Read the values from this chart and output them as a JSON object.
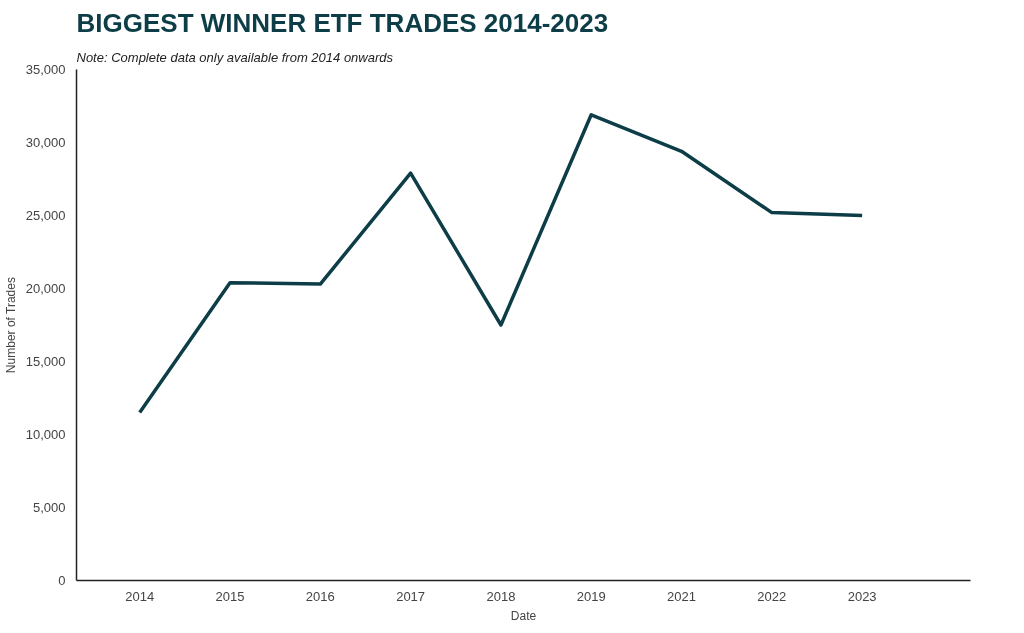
{
  "chart_data": {
    "type": "line",
    "title": "BIGGEST WINNER ETF TRADES 2014-2023",
    "subtitle": "Note: Complete data only available from 2014 onwards",
    "xlabel": "Date",
    "ylabel": "Number of Trades",
    "categories": [
      "2014",
      "2015",
      "2016",
      "2017",
      "2018",
      "2019",
      "2021",
      "2022",
      "2023"
    ],
    "series": [
      {
        "color": "#0d3d47",
        "values": [
          11500,
          20400,
          20300,
          27900,
          17500,
          31900,
          29400,
          25200,
          25000
        ]
      }
    ],
    "ylim": [
      0,
      35000
    ],
    "yticks": [
      {
        "value": 0,
        "label": "0"
      },
      {
        "value": 5000,
        "label": "5,000"
      },
      {
        "value": 10000,
        "label": "10,000"
      },
      {
        "value": 15000,
        "label": "15,000"
      },
      {
        "value": 20000,
        "label": "20,000"
      },
      {
        "value": 25000,
        "label": "25,000"
      },
      {
        "value": 30000,
        "label": "30,000"
      },
      {
        "value": 35000,
        "label": "35,000"
      }
    ],
    "grid": false,
    "marker": "none",
    "line_style": "solid"
  }
}
